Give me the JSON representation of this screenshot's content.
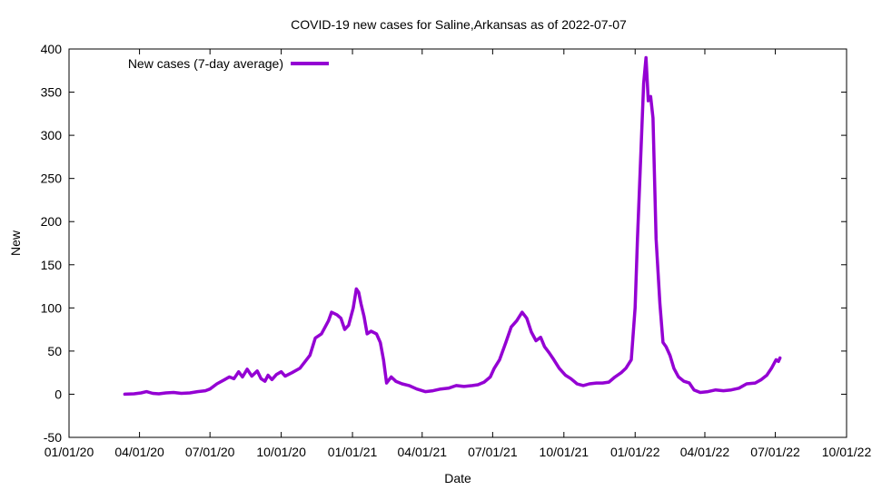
{
  "chart_data": {
    "type": "line",
    "title": "COVID-19 new cases for Saline,Arkansas as of 2022-07-07",
    "xlabel": "Date",
    "ylabel": "New",
    "xlim": [
      "2020-01-01",
      "2022-10-01"
    ],
    "ylim": [
      -50,
      400
    ],
    "xticks": [
      "01/01/20",
      "04/01/20",
      "07/01/20",
      "10/01/20",
      "01/01/21",
      "04/01/21",
      "07/01/21",
      "10/01/21",
      "01/01/22",
      "04/01/22",
      "07/01/22",
      "10/01/22"
    ],
    "yticks": [
      -50,
      0,
      50,
      100,
      150,
      200,
      250,
      300,
      350,
      400
    ],
    "legend_position": "top-left",
    "grid": false,
    "series": [
      {
        "name": "New cases (7-day average)",
        "color": "#9400d3",
        "points": [
          [
            "2020-03-13",
            0
          ],
          [
            "2020-03-25",
            0.5
          ],
          [
            "2020-04-03",
            1.5
          ],
          [
            "2020-04-10",
            3
          ],
          [
            "2020-04-18",
            1
          ],
          [
            "2020-04-26",
            0.5
          ],
          [
            "2020-05-05",
            1.5
          ],
          [
            "2020-05-15",
            2
          ],
          [
            "2020-05-25",
            1
          ],
          [
            "2020-06-05",
            1.5
          ],
          [
            "2020-06-15",
            3
          ],
          [
            "2020-06-25",
            4
          ],
          [
            "2020-07-01",
            6
          ],
          [
            "2020-07-10",
            12
          ],
          [
            "2020-07-20",
            17
          ],
          [
            "2020-07-26",
            20
          ],
          [
            "2020-08-01",
            18
          ],
          [
            "2020-08-07",
            26
          ],
          [
            "2020-08-12",
            20
          ],
          [
            "2020-08-18",
            29
          ],
          [
            "2020-08-24",
            21
          ],
          [
            "2020-08-31",
            27
          ],
          [
            "2020-09-05",
            18
          ],
          [
            "2020-09-10",
            15
          ],
          [
            "2020-09-14",
            22
          ],
          [
            "2020-09-19",
            17
          ],
          [
            "2020-09-25",
            23
          ],
          [
            "2020-10-01",
            26
          ],
          [
            "2020-10-06",
            21
          ],
          [
            "2020-10-15",
            25
          ],
          [
            "2020-10-25",
            30
          ],
          [
            "2020-11-01",
            38
          ],
          [
            "2020-11-07",
            45
          ],
          [
            "2020-11-14",
            65
          ],
          [
            "2020-11-22",
            70
          ],
          [
            "2020-12-01",
            85
          ],
          [
            "2020-12-05",
            95
          ],
          [
            "2020-12-12",
            92
          ],
          [
            "2020-12-17",
            88
          ],
          [
            "2020-12-22",
            75
          ],
          [
            "2020-12-27",
            80
          ],
          [
            "2021-01-02",
            100
          ],
          [
            "2021-01-06",
            122
          ],
          [
            "2021-01-09",
            118
          ],
          [
            "2021-01-12",
            105
          ],
          [
            "2021-01-16",
            90
          ],
          [
            "2021-01-20",
            70
          ],
          [
            "2021-01-25",
            73
          ],
          [
            "2021-02-01",
            70
          ],
          [
            "2021-02-06",
            60
          ],
          [
            "2021-02-10",
            40
          ],
          [
            "2021-02-14",
            13
          ],
          [
            "2021-02-20",
            20
          ],
          [
            "2021-02-26",
            15
          ],
          [
            "2021-03-06",
            12
          ],
          [
            "2021-03-15",
            10
          ],
          [
            "2021-03-25",
            6
          ],
          [
            "2021-04-05",
            3
          ],
          [
            "2021-04-15",
            4
          ],
          [
            "2021-04-25",
            6
          ],
          [
            "2021-05-05",
            7
          ],
          [
            "2021-05-15",
            10
          ],
          [
            "2021-05-25",
            9
          ],
          [
            "2021-06-05",
            10
          ],
          [
            "2021-06-12",
            11
          ],
          [
            "2021-06-20",
            14
          ],
          [
            "2021-06-28",
            20
          ],
          [
            "2021-07-03",
            30
          ],
          [
            "2021-07-10",
            40
          ],
          [
            "2021-07-18",
            60
          ],
          [
            "2021-07-25",
            78
          ],
          [
            "2021-08-01",
            85
          ],
          [
            "2021-08-08",
            95
          ],
          [
            "2021-08-14",
            88
          ],
          [
            "2021-08-20",
            72
          ],
          [
            "2021-08-26",
            62
          ],
          [
            "2021-09-01",
            66
          ],
          [
            "2021-09-06",
            55
          ],
          [
            "2021-09-12",
            48
          ],
          [
            "2021-09-18",
            40
          ],
          [
            "2021-09-25",
            30
          ],
          [
            "2021-10-03",
            22
          ],
          [
            "2021-10-10",
            18
          ],
          [
            "2021-10-18",
            12
          ],
          [
            "2021-10-26",
            10
          ],
          [
            "2021-11-03",
            12
          ],
          [
            "2021-11-12",
            13
          ],
          [
            "2021-11-20",
            13
          ],
          [
            "2021-11-28",
            14
          ],
          [
            "2021-12-06",
            20
          ],
          [
            "2021-12-14",
            25
          ],
          [
            "2021-12-20",
            30
          ],
          [
            "2021-12-27",
            40
          ],
          [
            "2022-01-01",
            100
          ],
          [
            "2022-01-04",
            180
          ],
          [
            "2022-01-08",
            270
          ],
          [
            "2022-01-12",
            360
          ],
          [
            "2022-01-15",
            390
          ],
          [
            "2022-01-18",
            340
          ],
          [
            "2022-01-21",
            345
          ],
          [
            "2022-01-24",
            320
          ],
          [
            "2022-01-28",
            180
          ],
          [
            "2022-02-02",
            105
          ],
          [
            "2022-02-06",
            60
          ],
          [
            "2022-02-10",
            55
          ],
          [
            "2022-02-15",
            45
          ],
          [
            "2022-02-20",
            30
          ],
          [
            "2022-02-26",
            20
          ],
          [
            "2022-03-05",
            15
          ],
          [
            "2022-03-12",
            13
          ],
          [
            "2022-03-18",
            5
          ],
          [
            "2022-03-26",
            2
          ],
          [
            "2022-04-05",
            3
          ],
          [
            "2022-04-15",
            5
          ],
          [
            "2022-04-25",
            4
          ],
          [
            "2022-05-05",
            5
          ],
          [
            "2022-05-15",
            7
          ],
          [
            "2022-05-25",
            12
          ],
          [
            "2022-06-05",
            13
          ],
          [
            "2022-06-13",
            17
          ],
          [
            "2022-06-20",
            22
          ],
          [
            "2022-06-26",
            30
          ],
          [
            "2022-07-02",
            40
          ],
          [
            "2022-07-05",
            38
          ],
          [
            "2022-07-07",
            42
          ]
        ]
      }
    ]
  }
}
